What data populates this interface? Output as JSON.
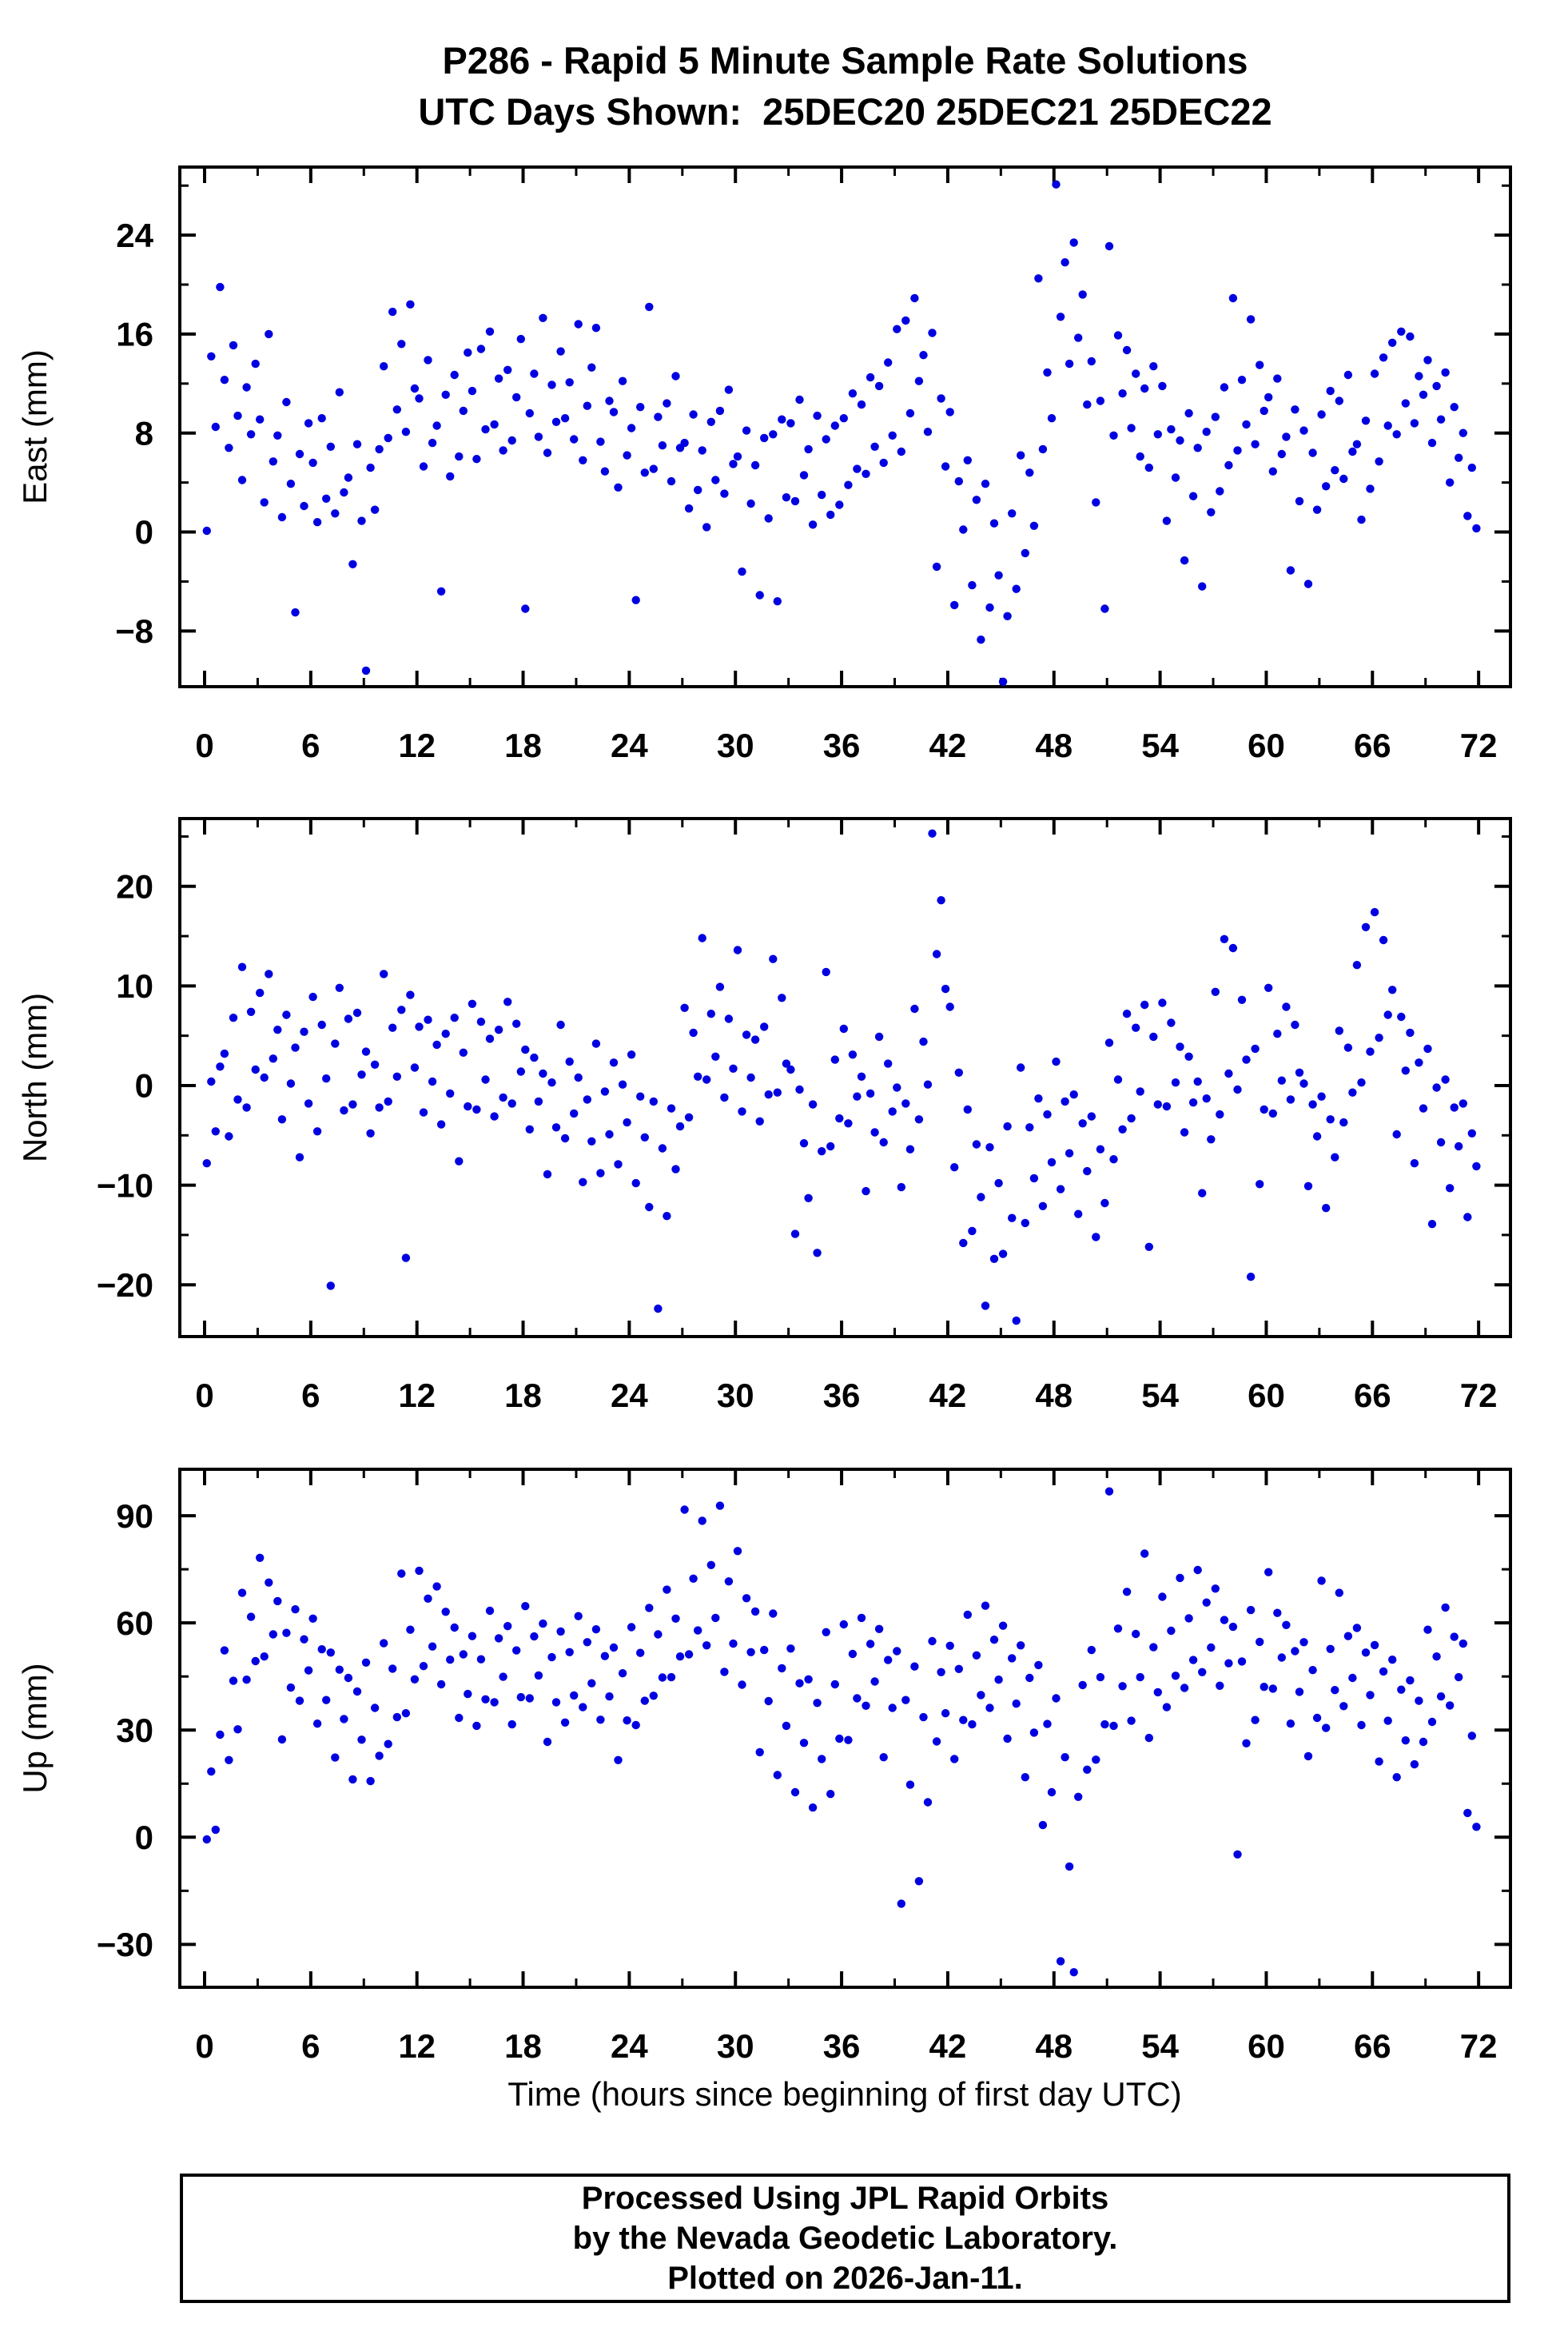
{
  "title_line1": "P286 - Rapid 5 Minute Sample Rate Solutions",
  "title_line2": "UTC Days Shown:  25DEC20 25DEC21 25DEC22",
  "xlabel": "Time (hours since beginning of first day UTC)",
  "axis_color": "#000000",
  "footer": {
    "line1": "Processed Using JPL Rapid Orbits",
    "line2": "by the Nevada Geodetic Laboratory.",
    "line3": "Plotted on 2026-Jan-11."
  },
  "chart_data": [
    {
      "name": "east",
      "type": "scatter",
      "ylabel": "East (mm)",
      "point_color": "#0000e0",
      "xlim": [
        -1.4,
        73.8
      ],
      "xticks": [
        0,
        6,
        12,
        18,
        24,
        30,
        36,
        42,
        48,
        54,
        60,
        66,
        72
      ],
      "xminor": 3,
      "ylim": [
        -12.5,
        29.5
      ],
      "yticks": [
        -8,
        0,
        8,
        16,
        24
      ],
      "yminor": 4,
      "x0": 0.125,
      "dx": 0.25,
      "values": [
        0.1,
        14.2,
        8.5,
        19.8,
        12.3,
        6.8,
        15.1,
        9.4,
        4.2,
        11.7,
        7.9,
        13.6,
        9.1,
        2.4,
        16.0,
        5.7,
        7.8,
        1.2,
        10.5,
        3.9,
        -6.5,
        6.3,
        2.1,
        8.8,
        5.6,
        0.8,
        9.2,
        2.7,
        6.9,
        1.5,
        11.3,
        3.2,
        4.4,
        -2.6,
        7.1,
        0.9,
        -11.2,
        5.2,
        1.8,
        6.7,
        13.4,
        7.6,
        17.8,
        9.9,
        15.2,
        8.1,
        18.4,
        11.6,
        10.8,
        5.3,
        13.9,
        7.2,
        8.6,
        -4.8,
        11.1,
        4.5,
        12.7,
        6.1,
        9.8,
        14.5,
        11.4,
        5.9,
        14.8,
        8.3,
        16.2,
        8.7,
        12.4,
        6.6,
        13.1,
        7.4,
        10.9,
        15.6,
        -6.2,
        9.6,
        12.8,
        7.7,
        17.3,
        6.4,
        11.9,
        8.9,
        14.6,
        9.2,
        12.1,
        7.5,
        16.8,
        5.8,
        10.2,
        13.3,
        16.5,
        7.3,
        4.9,
        10.6,
        9.7,
        3.6,
        12.2,
        6.2,
        8.4,
        -5.5,
        10.1,
        4.8,
        18.2,
        5.1,
        9.3,
        7.0,
        10.4,
        4.1,
        12.6,
        6.8,
        7.2,
        1.9,
        9.5,
        3.4,
        6.6,
        0.4,
        8.9,
        4.2,
        9.8,
        3.1,
        11.5,
        5.5,
        6.1,
        -3.2,
        8.2,
        2.3,
        5.4,
        -5.1,
        7.6,
        1.1,
        7.9,
        -5.6,
        9.1,
        2.8,
        8.8,
        2.5,
        10.7,
        4.6,
        6.7,
        0.6,
        9.4,
        3.0,
        7.5,
        1.4,
        8.6,
        2.2,
        9.2,
        3.8,
        11.2,
        5.1,
        10.3,
        4.7,
        12.5,
        6.9,
        11.8,
        5.6,
        13.7,
        7.8,
        16.4,
        6.5,
        17.1,
        9.6,
        18.9,
        12.2,
        14.3,
        8.1,
        16.1,
        -2.8,
        10.8,
        5.3,
        9.7,
        -5.9,
        4.1,
        0.2,
        5.8,
        -4.3,
        2.6,
        -8.7,
        3.9,
        -6.1,
        0.7,
        -3.5,
        -12.1,
        -6.8,
        1.5,
        -4.6,
        6.2,
        -1.7,
        4.8,
        0.5,
        20.5,
        6.7,
        12.9,
        9.2,
        28.1,
        17.4,
        21.8,
        13.6,
        23.4,
        15.7,
        19.2,
        10.3,
        13.8,
        2.4,
        10.6,
        -6.2,
        23.1,
        7.8,
        15.9,
        11.2,
        14.7,
        8.4,
        12.8,
        6.1,
        11.6,
        5.2,
        13.4,
        7.9,
        11.8,
        0.9,
        8.3,
        4.4,
        7.4,
        -2.3,
        9.6,
        2.9,
        6.8,
        -4.4,
        8.1,
        1.6,
        9.3,
        3.3,
        11.7,
        5.4,
        18.9,
        6.6,
        12.3,
        8.7,
        17.2,
        7.1,
        13.5,
        9.8,
        10.9,
        4.9,
        12.4,
        6.3,
        7.7,
        -3.1,
        9.9,
        2.5,
        8.2,
        -4.2,
        6.4,
        1.8,
        9.5,
        3.7,
        11.4,
        5.0,
        10.6,
        4.3,
        12.7,
        6.5,
        7.1,
        1.0,
        9.0,
        3.5,
        12.8,
        5.7,
        14.1,
        8.6,
        15.3,
        7.9,
        16.2,
        10.4,
        15.8,
        8.8,
        12.6,
        11.1,
        13.9,
        7.2,
        11.8,
        9.1,
        12.9,
        4.0,
        10.1,
        6.0,
        8.0,
        1.3,
        5.2,
        0.3
      ]
    },
    {
      "name": "north",
      "type": "scatter",
      "ylabel": "North (mm)",
      "point_color": "#0000e0",
      "xlim": [
        -1.4,
        73.8
      ],
      "xticks": [
        0,
        6,
        12,
        18,
        24,
        30,
        36,
        42,
        48,
        54,
        60,
        66,
        72
      ],
      "xminor": 3,
      "ylim": [
        -25.2,
        26.8
      ],
      "yticks": [
        -20,
        -10,
        0,
        10,
        20
      ],
      "yminor": 5,
      "x0": 0.125,
      "dx": 0.25,
      "values": [
        -7.8,
        0.4,
        -4.6,
        1.9,
        3.2,
        -5.1,
        6.8,
        -1.4,
        11.9,
        -2.2,
        7.4,
        1.6,
        9.3,
        0.8,
        11.2,
        2.7,
        5.6,
        -3.4,
        7.1,
        0.2,
        3.8,
        -7.2,
        5.4,
        -1.8,
        8.9,
        -4.6,
        6.1,
        0.7,
        -20.1,
        4.2,
        9.8,
        -2.5,
        6.7,
        -1.9,
        7.3,
        1.1,
        3.4,
        -4.8,
        2.1,
        -2.2,
        11.2,
        -1.6,
        5.8,
        0.9,
        7.6,
        -17.3,
        9.1,
        1.8,
        5.9,
        -2.7,
        6.6,
        0.4,
        4.1,
        -3.9,
        5.2,
        -0.8,
        6.8,
        -7.6,
        3.3,
        -2.1,
        8.2,
        -2.4,
        6.4,
        0.6,
        4.7,
        -3.1,
        5.6,
        -1.2,
        8.4,
        -1.8,
        6.2,
        1.4,
        3.6,
        -4.4,
        2.8,
        -1.6,
        1.2,
        -8.9,
        0.3,
        -4.2,
        6.1,
        -5.3,
        2.4,
        -2.8,
        0.8,
        -9.7,
        -1.4,
        -5.6,
        4.2,
        -8.8,
        -0.6,
        -4.9,
        2.3,
        -7.9,
        0.1,
        -3.7,
        3.1,
        -9.8,
        -1.1,
        -5.2,
        -12.2,
        -1.6,
        -22.4,
        -6.3,
        -13.1,
        -2.3,
        -8.4,
        -4.1,
        7.8,
        -3.2,
        5.3,
        0.9,
        14.8,
        0.6,
        7.2,
        2.9,
        9.9,
        -1.2,
        6.7,
        1.7,
        13.6,
        -2.6,
        5.1,
        0.8,
        4.6,
        -3.6,
        5.9,
        -0.9,
        12.7,
        -0.7,
        8.8,
        2.2,
        1.6,
        -14.9,
        -0.4,
        -5.8,
        -11.3,
        -1.9,
        -16.8,
        -6.6,
        11.4,
        -6.1,
        2.6,
        -3.3,
        5.7,
        -3.8,
        3.1,
        -1.1,
        0.9,
        -10.6,
        -0.8,
        -4.7,
        4.9,
        -5.7,
        2.2,
        -2.6,
        -0.2,
        -10.2,
        -1.8,
        -6.4,
        7.7,
        -3.4,
        4.4,
        0.1,
        25.3,
        13.2,
        18.6,
        9.7,
        7.9,
        -8.2,
        1.3,
        -15.8,
        -2.4,
        -14.6,
        -5.9,
        -11.2,
        -22.1,
        -6.2,
        -17.4,
        -9.8,
        -16.9,
        -4.1,
        -13.3,
        -23.6,
        1.8,
        -13.8,
        -4.2,
        -9.3,
        -1.3,
        -12.1,
        -2.9,
        -7.7,
        2.4,
        -10.4,
        -1.6,
        -6.8,
        -0.9,
        -12.9,
        -3.8,
        -8.6,
        -3.1,
        -15.2,
        -6.4,
        -11.8,
        4.3,
        -7.4,
        0.6,
        -4.4,
        7.2,
        -3.3,
        5.8,
        -0.6,
        8.1,
        -16.2,
        4.9,
        -1.9,
        8.3,
        -2.1,
        6.3,
        0.3,
        3.9,
        -4.7,
        2.9,
        -1.7,
        0.4,
        -10.8,
        -1.3,
        -5.4,
        9.4,
        -2.9,
        14.7,
        1.2,
        13.8,
        -0.4,
        8.6,
        2.6,
        -19.2,
        3.7,
        -9.9,
        -2.4,
        9.8,
        -2.8,
        5.2,
        0.5,
        7.9,
        -1.4,
        6.1,
        1.3,
        0.2,
        -10.1,
        -1.9,
        -5.1,
        -1.1,
        -12.3,
        -3.4,
        -7.2,
        5.5,
        -3.7,
        3.8,
        -0.7,
        12.1,
        0.3,
        15.9,
        3.4,
        17.4,
        4.8,
        14.6,
        7.1,
        9.6,
        -4.9,
        6.9,
        1.5,
        5.3,
        -7.8,
        2.3,
        -2.3,
        3.7,
        -13.9,
        -0.2,
        -5.7,
        0.6,
        -10.3,
        -2.2,
        -6.1,
        -1.8,
        -13.2,
        -4.8,
        -8.1
      ]
    },
    {
      "name": "up",
      "type": "scatter",
      "ylabel": "Up (mm)",
      "point_color": "#0000e0",
      "xlim": [
        -1.4,
        73.8
      ],
      "xticks": [
        0,
        6,
        12,
        18,
        24,
        30,
        36,
        42,
        48,
        54,
        60,
        66,
        72
      ],
      "xminor": 3,
      "ylim": [
        -42,
        103
      ],
      "yticks": [
        -30,
        0,
        30,
        60,
        90
      ],
      "yminor": 15,
      "x0": 0.125,
      "dx": 0.25,
      "values": [
        -0.6,
        18.4,
        2.1,
        28.7,
        52.3,
        21.6,
        43.8,
        30.2,
        68.4,
        44.1,
        61.7,
        49.3,
        78.2,
        50.6,
        71.3,
        56.8,
        66.1,
        27.4,
        57.2,
        41.9,
        63.8,
        38.2,
        55.4,
        46.7,
        61.2,
        31.8,
        52.6,
        38.4,
        51.7,
        22.3,
        46.9,
        33.1,
        44.6,
        16.2,
        40.8,
        27.3,
        48.9,
        15.7,
        36.2,
        22.8,
        54.3,
        26.1,
        47.2,
        33.6,
        73.8,
        34.7,
        58.1,
        44.2,
        74.6,
        47.9,
        66.8,
        53.4,
        70.2,
        42.8,
        63.1,
        49.7,
        58.7,
        33.4,
        51.2,
        40.1,
        56.3,
        31.2,
        49.8,
        38.6,
        63.4,
        37.8,
        55.7,
        44.9,
        59.1,
        31.6,
        52.3,
        39.2,
        64.7,
        38.9,
        56.2,
        45.3,
        59.8,
        26.7,
        50.4,
        37.8,
        57.6,
        32.1,
        51.8,
        39.7,
        61.9,
        36.4,
        54.6,
        43.1,
        58.2,
        32.9,
        50.7,
        39.4,
        53.1,
        21.6,
        45.9,
        32.7,
        58.8,
        31.4,
        51.6,
        38.2,
        64.2,
        39.6,
        56.8,
        44.7,
        69.3,
        44.8,
        61.2,
        50.6,
        91.7,
        51.2,
        72.4,
        57.9,
        88.6,
        53.7,
        76.2,
        61.4,
        92.8,
        46.3,
        71.6,
        54.2,
        80.1,
        42.7,
        66.9,
        51.8,
        63.2,
        23.8,
        52.4,
        38.1,
        62.6,
        17.4,
        47.3,
        31.2,
        52.8,
        12.6,
        43.1,
        26.4,
        44.2,
        8.3,
        37.6,
        21.9,
        57.4,
        12.1,
        42.8,
        27.6,
        59.6,
        27.2,
        51.3,
        38.9,
        61.4,
        36.8,
        54.1,
        43.6,
        58.3,
        22.4,
        49.6,
        36.2,
        52.1,
        -18.6,
        38.4,
        14.7,
        47.8,
        -12.3,
        33.6,
        9.8,
        54.9,
        26.8,
        46.2,
        34.7,
        53.6,
        21.9,
        47.1,
        32.8,
        62.3,
        31.6,
        50.9,
        39.8,
        64.8,
        36.2,
        55.3,
        44.1,
        59.2,
        27.6,
        50.1,
        37.4,
        53.7,
        16.8,
        44.6,
        29.3,
        48.2,
        3.4,
        31.7,
        12.6,
        38.9,
        -34.7,
        22.4,
        -8.2,
        -37.8,
        11.3,
        42.6,
        18.9,
        52.4,
        21.7,
        44.8,
        31.6,
        96.8,
        31.2,
        58.4,
        42.3,
        68.7,
        32.6,
        56.9,
        44.8,
        79.4,
        27.8,
        53.2,
        40.6,
        67.3,
        36.4,
        57.8,
        45.2,
        72.6,
        41.8,
        61.3,
        49.6,
        74.8,
        46.2,
        65.7,
        53.1,
        69.6,
        42.4,
        60.8,
        48.7,
        58.9,
        -4.8,
        49.2,
        26.3,
        63.6,
        32.8,
        54.7,
        42.1,
        74.2,
        41.6,
        62.8,
        50.3,
        59.4,
        31.8,
        52.1,
        40.7,
        54.6,
        22.7,
        46.8,
        33.4,
        71.8,
        30.6,
        52.7,
        41.2,
        68.4,
        36.7,
        56.3,
        44.6,
        58.6,
        31.4,
        51.7,
        39.8,
        53.8,
        21.2,
        46.4,
        32.6,
        49.7,
        16.8,
        41.3,
        27.1,
        43.9,
        20.4,
        38.2,
        26.7,
        58.1,
        32.3,
        50.6,
        39.4,
        64.3,
        36.9,
        56.1,
        44.8,
        54.2,
        6.8,
        28.4,
        2.9
      ]
    }
  ]
}
